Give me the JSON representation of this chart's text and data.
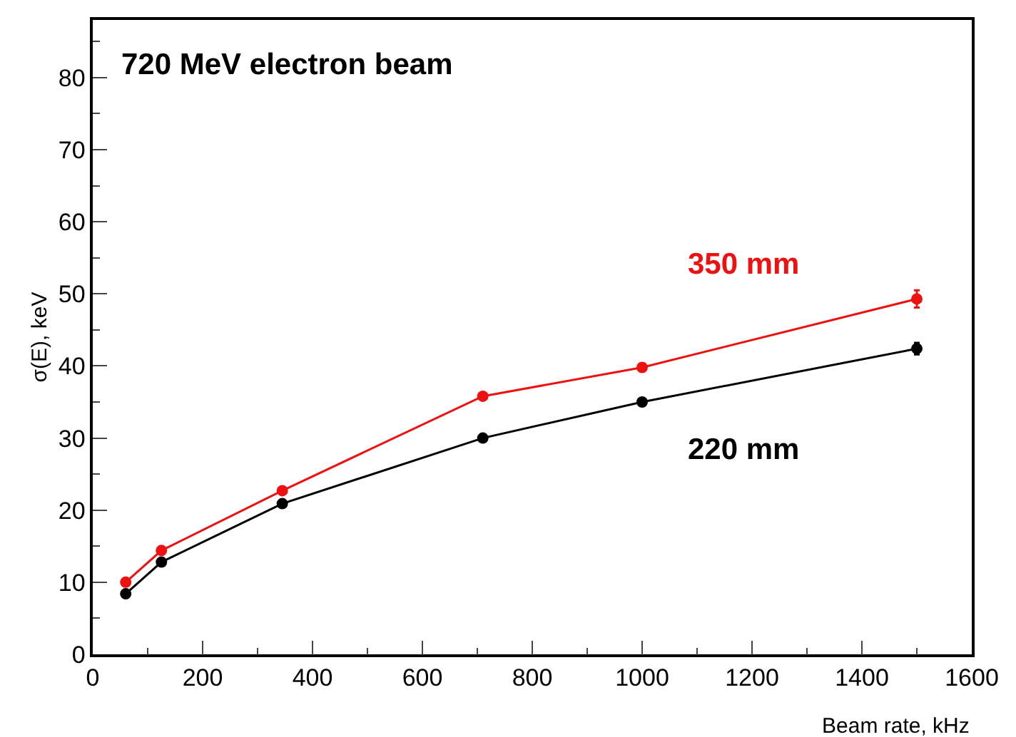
{
  "chart_data": {
    "type": "line",
    "title": "720 MeV electron beam",
    "xlabel": "Beam rate, kHz",
    "ylabel": "σ(E), keV",
    "x": [
      60,
      125,
      345,
      710,
      1000,
      1500
    ],
    "series": [
      {
        "name": "350 mm",
        "color": "#ee1111",
        "values": [
          10.0,
          14.4,
          22.7,
          35.8,
          39.8,
          49.3
        ],
        "errors": [
          null,
          null,
          null,
          null,
          null,
          1.2
        ]
      },
      {
        "name": "220 mm",
        "color": "#000000",
        "values": [
          8.4,
          12.8,
          20.9,
          30.0,
          35.0,
          42.4
        ],
        "errors": [
          null,
          null,
          null,
          null,
          null,
          0.8
        ]
      }
    ],
    "xlim": [
      0,
      1600
    ],
    "ylim": [
      0,
      88
    ],
    "xticks": [
      0,
      200,
      400,
      600,
      800,
      1000,
      1200,
      1400,
      1600
    ],
    "yticks": [
      0,
      10,
      20,
      30,
      40,
      50,
      60,
      70,
      80
    ],
    "legend": false,
    "marker": "circle",
    "line_style": "solid"
  }
}
